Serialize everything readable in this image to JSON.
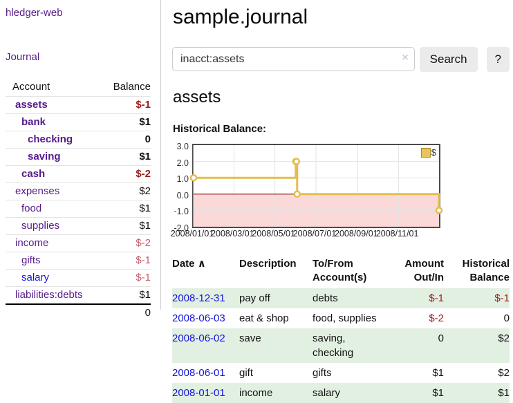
{
  "app": {
    "brand": "hledger-web"
  },
  "nav": {
    "journal": "Journal"
  },
  "sidebar": {
    "header": {
      "account": "Account",
      "balance": "Balance"
    },
    "accounts": [
      {
        "name": "assets",
        "level": 1,
        "balance": "$-1",
        "bold": true,
        "balance_class": "neg-strong"
      },
      {
        "name": "bank",
        "level": 2,
        "balance": "$1",
        "bold": true,
        "balance_class": ""
      },
      {
        "name": "checking",
        "level": 3,
        "balance": "0",
        "bold": true,
        "balance_class": ""
      },
      {
        "name": "saving",
        "level": 3,
        "balance": "$1",
        "bold": true,
        "balance_class": ""
      },
      {
        "name": "cash",
        "level": 2,
        "balance": "$-2",
        "bold": true,
        "balance_class": "neg-strong"
      },
      {
        "name": "expenses",
        "level": 1,
        "balance": "$2",
        "bold": false,
        "balance_class": ""
      },
      {
        "name": "food",
        "level": 2,
        "balance": "$1",
        "bold": false,
        "balance_class": ""
      },
      {
        "name": "supplies",
        "level": 2,
        "balance": "$1",
        "bold": false,
        "balance_class": ""
      },
      {
        "name": "income",
        "level": 1,
        "balance": "$-2",
        "bold": false,
        "balance_class": "neg-soft"
      },
      {
        "name": "gifts",
        "level": 2,
        "balance": "$-1",
        "bold": false,
        "balance_class": "neg-soft"
      },
      {
        "name": "salary",
        "level": 2,
        "balance": "$-1",
        "bold": false,
        "balance_class": "neg-soft",
        "link_color": "blue"
      },
      {
        "name": "liabilities:debts",
        "level": 1,
        "balance": "$1",
        "bold": false,
        "balance_class": ""
      }
    ],
    "total": "0"
  },
  "header": {
    "title": "sample.journal"
  },
  "search": {
    "value": "inacct:assets",
    "clear_icon": "×",
    "button": "Search",
    "help_button": "?"
  },
  "account_page": {
    "heading": "assets",
    "chart_label": "Historical Balance:"
  },
  "chart_data": {
    "type": "line",
    "style": "step",
    "legend": "$",
    "x_range": [
      "2008-01-01",
      "2008-12-31"
    ],
    "ylim": [
      -2,
      3
    ],
    "yticks": [
      3.0,
      2.0,
      1.0,
      0.0,
      -1.0,
      -2.0
    ],
    "xticks": [
      "2008/01/01",
      "2008/03/01",
      "2008/05/01",
      "2008/07/01",
      "2008/09/01",
      "2008/11/01"
    ],
    "series": [
      {
        "name": "$",
        "points": [
          {
            "date": "2008-01-01",
            "value": 1
          },
          {
            "date": "2008-06-01",
            "value": 2
          },
          {
            "date": "2008-06-02",
            "value": 2
          },
          {
            "date": "2008-06-03",
            "value": 0
          },
          {
            "date": "2008-12-31",
            "value": -1
          }
        ]
      }
    ],
    "line_color": "#e4bd4e",
    "negative_fill_color": "#fbd9d9",
    "zero_line_color": "#8c1717",
    "grid_color": "#e3e3e3"
  },
  "register": {
    "columns": {
      "date": "Date",
      "sort_indicator": "∧",
      "description": "Description",
      "tofrom_line1": "To/From",
      "tofrom_line2": "Account(s)",
      "amount_line1": "Amount",
      "amount_line2": "Out/In",
      "balance_line1": "Historical",
      "balance_line2": "Balance"
    },
    "rows": [
      {
        "date": "2008-12-31",
        "description": "pay off",
        "accounts": "debts",
        "amount": "$-1",
        "balance": "$-1"
      },
      {
        "date": "2008-06-03",
        "description": "eat & shop",
        "accounts": "food, supplies",
        "amount": "$-2",
        "balance": "0"
      },
      {
        "date": "2008-06-02",
        "description": "save",
        "accounts": "saving, checking",
        "amount": "0",
        "balance": "$2"
      },
      {
        "date": "2008-06-01",
        "description": "gift",
        "accounts": "gifts",
        "amount": "$1",
        "balance": "$2"
      },
      {
        "date": "2008-01-01",
        "description": "income",
        "accounts": "salary",
        "amount": "$1",
        "balance": "$1"
      }
    ]
  }
}
